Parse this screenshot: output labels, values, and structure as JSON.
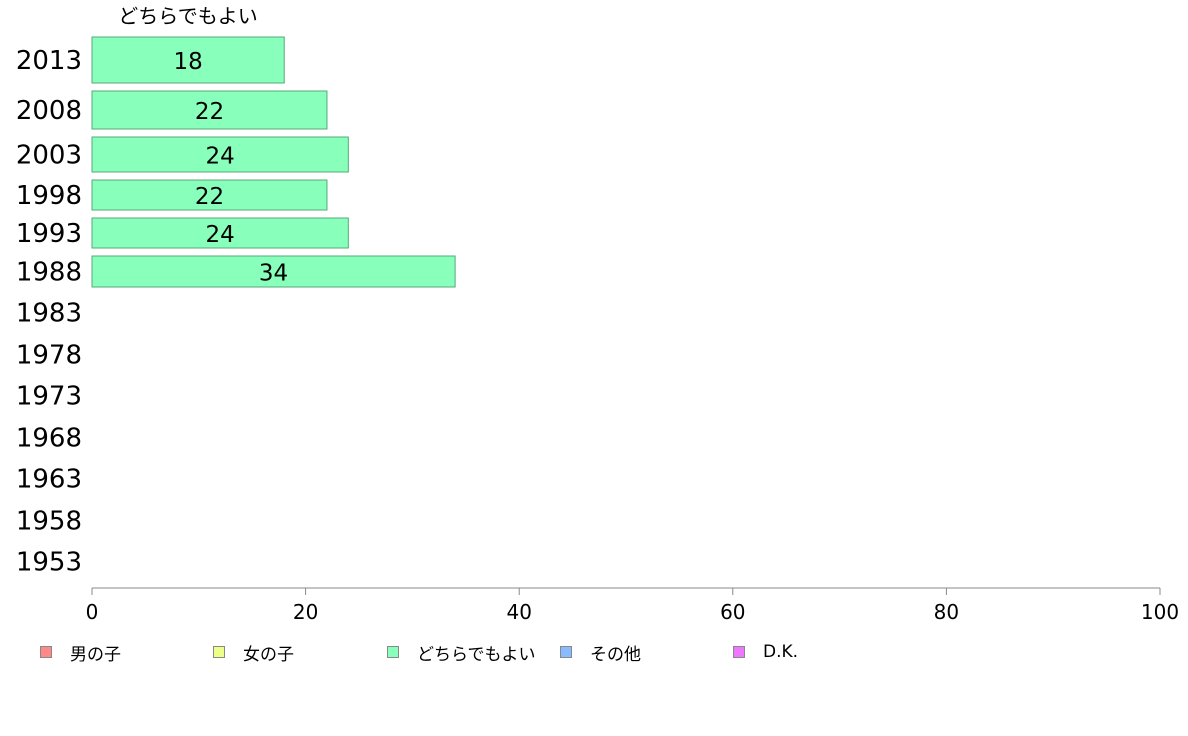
{
  "chart_data": {
    "type": "bar",
    "orientation": "horizontal",
    "series_title": "どちらでもよい",
    "categories": [
      "2013",
      "2008",
      "2003",
      "1998",
      "1993",
      "1988",
      "1983",
      "1978",
      "1973",
      "1968",
      "1963",
      "1958",
      "1953"
    ],
    "values": [
      18,
      22,
      24,
      22,
      24,
      34,
      null,
      null,
      null,
      null,
      null,
      null,
      null
    ],
    "value_labels": [
      "18",
      "22",
      "24",
      "22",
      "24",
      "34",
      "",
      "",
      "",
      "",
      "",
      "",
      ""
    ],
    "xlim": [
      0,
      100
    ],
    "x_ticks": [
      "0",
      "20",
      "40",
      "60",
      "80",
      "100"
    ],
    "bar_color": "#88ffbb",
    "bar_border_color": "#55aa77",
    "grid": false,
    "legend": {
      "placement": "bottom",
      "items": [
        {
          "label": "男の子",
          "color": "#ff8888"
        },
        {
          "label": "女の子",
          "color": "#eeff88"
        },
        {
          "label": "どちらでもよい",
          "color": "#88ffbb"
        },
        {
          "label": "その他",
          "color": "#88bbff"
        },
        {
          "label": "D.K.",
          "color": "#ee77ff"
        }
      ]
    }
  }
}
